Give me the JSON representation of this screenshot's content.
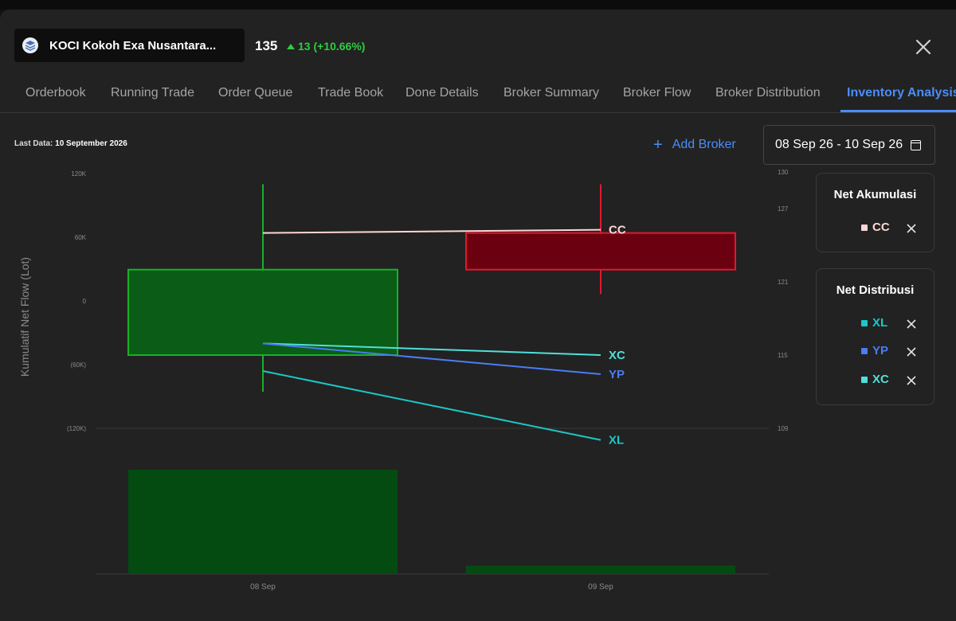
{
  "header": {
    "ticker": "KOCI Kokoh Exa Nusantara...",
    "price": "135",
    "change": "13 (+10.66%)",
    "logo_icon": "layers-icon",
    "close_icon": "close-icon"
  },
  "tabs": [
    {
      "label": "Orderbook"
    },
    {
      "label": "Running Trade"
    },
    {
      "label": "Order Queue"
    },
    {
      "label": "Trade Book"
    },
    {
      "label": "Done Details"
    },
    {
      "label": "Broker Summary"
    },
    {
      "label": "Broker Flow"
    },
    {
      "label": "Broker Distribution"
    },
    {
      "label": "Inventory Analysis",
      "active": true
    }
  ],
  "toolbar": {
    "last_data_label": "Last Data:",
    "last_data_value": "10 September 2026",
    "add_broker_label": "Add Broker",
    "date_range": "08 Sep 26 - 10 Sep 26"
  },
  "legend": {
    "accumulation": {
      "title": "Net Akumulasi",
      "items": [
        {
          "name": "CC",
          "color": "#ffd6d6"
        }
      ]
    },
    "distribution": {
      "title": "Net Distribusi",
      "items": [
        {
          "name": "XL",
          "color": "#1cc7c7"
        },
        {
          "name": "YP",
          "color": "#4b7bf5"
        },
        {
          "name": "XC",
          "color": "#4fe0d9"
        }
      ]
    }
  },
  "chart_data": {
    "type": "candlestick+line+bar",
    "categories": [
      "08 Sep",
      "09 Sep"
    ],
    "ylabel": "Kumulatif Net Flow (Lot)",
    "left_axis_ticks": [
      "120K",
      "60K",
      "0",
      "(60K)",
      "(120K)"
    ],
    "right_axis_ticks": [
      "130",
      "127",
      "121",
      "115",
      "109"
    ],
    "candles": [
      {
        "date": "08 Sep",
        "open": 115,
        "close": 122,
        "high": 129,
        "low": 112,
        "color": "#0a5c16",
        "border": "#19b12b"
      },
      {
        "date": "09 Sep",
        "open": 125,
        "close": 122,
        "high": 129,
        "low": 120,
        "color": "#6b0010",
        "border": "#e0192e"
      }
    ],
    "series": [
      {
        "name": "CC",
        "color": "#ffd6d6",
        "values": [
          64000,
          67000
        ]
      },
      {
        "name": "XC",
        "color": "#4fe0d9",
        "values": [
          -40000,
          -51000
        ]
      },
      {
        "name": "YP",
        "color": "#4b7bf5",
        "values": [
          -40000,
          -69000
        ]
      },
      {
        "name": "XL",
        "color": "#1cc7c7",
        "values": [
          -66000,
          -131000
        ]
      }
    ],
    "volume": [
      {
        "date": "08 Sep",
        "value": 100,
        "color": "#044b12"
      },
      {
        "date": "09 Sep",
        "value": 8,
        "color": "#044b12"
      }
    ],
    "grid": false
  }
}
